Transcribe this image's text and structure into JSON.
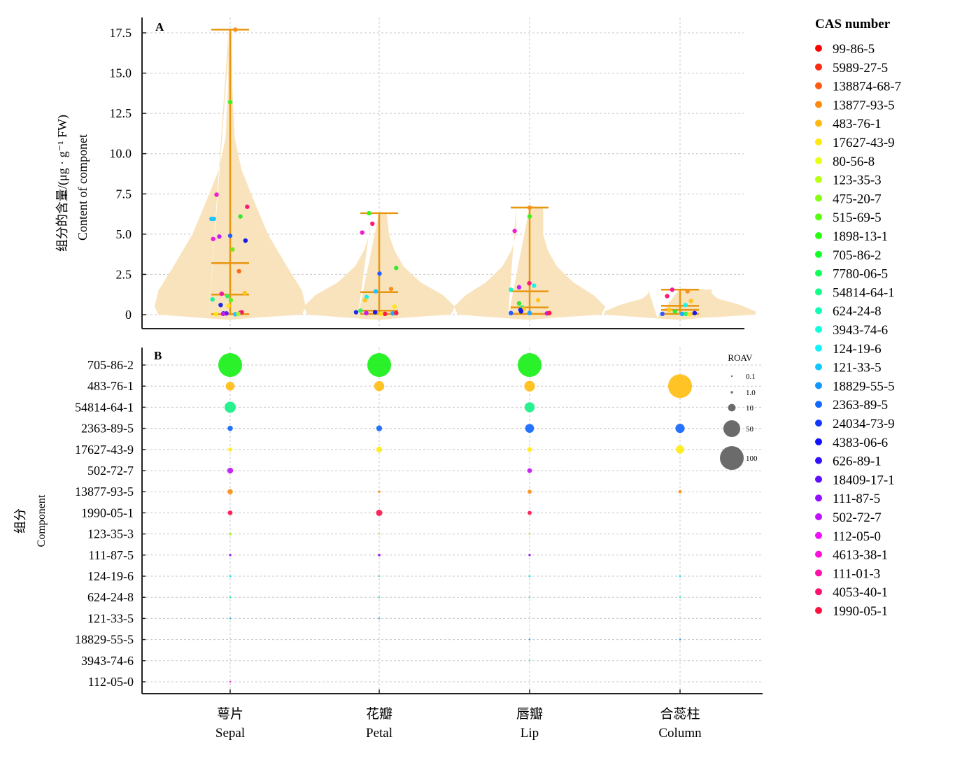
{
  "chart_data": [
    {
      "panel": "A",
      "type": "violin",
      "title": "",
      "panel_label": "A",
      "ylabel_cn": "组分的含量/(μg · g⁻¹ FW)",
      "ylabel_en": "Content of componet",
      "ylim": [
        0,
        17.5
      ],
      "yticks": [
        0,
        2.5,
        5.0,
        7.5,
        10.0,
        12.5,
        15.0,
        17.5
      ],
      "ytick_labels": [
        "0",
        "2.5",
        "5.0",
        "7.5",
        "10.0",
        "12.5",
        "15.0",
        "17.5"
      ],
      "grid": true,
      "violin_color": "#f9e3bc",
      "whisker_color": "#e8960f",
      "categories": [
        "Sepal",
        "Petal",
        "Lip",
        "Column"
      ],
      "groups": [
        {
          "name": "Sepal",
          "max": 17.7,
          "q3": 3.2,
          "median": 1.25,
          "min": 0.03,
          "violin_width_profile": [
            [
              0,
              0.95
            ],
            [
              0.5,
              1.0
            ],
            [
              1.5,
              0.95
            ],
            [
              3,
              0.75
            ],
            [
              5,
              0.5
            ],
            [
              7,
              0.32
            ],
            [
              9,
              0.15
            ],
            [
              11,
              0.06
            ],
            [
              14,
              0.03
            ],
            [
              17.7,
              0.02
            ]
          ],
          "points": [
            {
              "v": 17.7,
              "c": "#f7931e",
              "j": 0.15
            },
            {
              "v": 13.2,
              "c": "#3ef01e",
              "j": 0.0
            },
            {
              "v": 7.45,
              "c": "#f21cd2",
              "j": -0.4
            },
            {
              "v": 6.7,
              "c": "#ff1a75",
              "j": 0.5
            },
            {
              "v": 6.1,
              "c": "#33e833",
              "j": 0.3
            },
            {
              "v": 5.95,
              "c": "#1fc3ff",
              "j": -0.55
            },
            {
              "v": 5.95,
              "c": "#1fc3ff",
              "j": -0.48
            },
            {
              "v": 4.9,
              "c": "#2a5bff",
              "j": 0.0
            },
            {
              "v": 4.85,
              "c": "#c21ef2",
              "j": -0.32
            },
            {
              "v": 4.7,
              "c": "#f01edc",
              "j": -0.5
            },
            {
              "v": 4.6,
              "c": "#1a1ae8",
              "j": 0.45
            },
            {
              "v": 4.05,
              "c": "#7ae51a",
              "j": 0.07
            },
            {
              "v": 2.7,
              "c": "#ff6a1a",
              "j": 0.26
            },
            {
              "v": 1.35,
              "c": "#ffc61a",
              "j": 0.43
            },
            {
              "v": 1.3,
              "c": "#f01e9c",
              "j": -0.25
            },
            {
              "v": 1.15,
              "c": "#33f066",
              "j": -0.08
            },
            {
              "v": 0.95,
              "c": "#1ef0a0",
              "j": -0.52
            },
            {
              "v": 0.9,
              "c": "#5af01e",
              "j": 0.02
            },
            {
              "v": 0.6,
              "c": "#1a2ae8",
              "j": -0.28
            },
            {
              "v": 0.55,
              "c": "#ffe01a",
              "j": -0.05
            },
            {
              "v": 0.15,
              "c": "#ff1a40",
              "j": 0.34
            },
            {
              "v": 0.12,
              "c": "#e81e8c",
              "j": 0.3
            },
            {
              "v": 0.08,
              "c": "#1a2ae8",
              "j": -0.2
            },
            {
              "v": 0.08,
              "c": "#6a1ae8",
              "j": -0.11
            },
            {
              "v": 0.03,
              "c": "#ffe01a",
              "j": -0.42
            },
            {
              "v": 0.03,
              "c": "#1fc3ff",
              "j": 0.15
            },
            {
              "v": 0.05,
              "c": "#b0f01e",
              "j": 0.24
            },
            {
              "v": 0.05,
              "c": "#c21ef2",
              "j": -0.21
            }
          ]
        },
        {
          "name": "Petal",
          "max": 6.3,
          "q3": 1.4,
          "median": 0.25,
          "min": 0.05,
          "violin_width_profile": [
            [
              0,
              0.95
            ],
            [
              0.5,
              1.0
            ],
            [
              1.2,
              0.85
            ],
            [
              2,
              0.55
            ],
            [
              3,
              0.32
            ],
            [
              4,
              0.2
            ],
            [
              5,
              0.13
            ],
            [
              6.3,
              0.1
            ]
          ],
          "points": [
            {
              "v": 6.3,
              "c": "#3ef01e",
              "j": -0.3
            },
            {
              "v": 5.65,
              "c": "#ff1a75",
              "j": -0.2
            },
            {
              "v": 5.1,
              "c": "#f21cd2",
              "j": -0.5
            },
            {
              "v": 2.9,
              "c": "#33e833",
              "j": 0.5
            },
            {
              "v": 2.55,
              "c": "#2a5bff",
              "j": 0.01
            },
            {
              "v": 1.6,
              "c": "#f7931e",
              "j": 0.35
            },
            {
              "v": 1.45,
              "c": "#1fc3ff",
              "j": -0.1
            },
            {
              "v": 1.1,
              "c": "#1ff0e8",
              "j": -0.37
            },
            {
              "v": 0.9,
              "c": "#ffc61a",
              "j": -0.42
            },
            {
              "v": 0.5,
              "c": "#ffe01a",
              "j": 0.45
            },
            {
              "v": 0.25,
              "c": "#33f066",
              "j": -0.55
            },
            {
              "v": 0.15,
              "c": "#1a2ae8",
              "j": -0.68
            },
            {
              "v": 0.15,
              "c": "#1a1ae8",
              "j": -0.12
            },
            {
              "v": 0.1,
              "c": "#c21ef2",
              "j": -0.38
            },
            {
              "v": 0.05,
              "c": "#ff1a40",
              "j": 0.17
            },
            {
              "v": 0.05,
              "c": "#ffe01a",
              "j": 0.05
            },
            {
              "v": 0.08,
              "c": "#1fa8ff",
              "j": 0.4
            },
            {
              "v": 0.1,
              "c": "#ff1a40",
              "j": 0.5
            }
          ]
        },
        {
          "name": "Lip",
          "max": 6.65,
          "q3": 1.45,
          "median": 0.45,
          "min": 0.05,
          "violin_width_profile": [
            [
              0,
              0.95
            ],
            [
              0.5,
              1.0
            ],
            [
              1.2,
              0.85
            ],
            [
              2,
              0.58
            ],
            [
              3,
              0.36
            ],
            [
              4,
              0.24
            ],
            [
              5,
              0.18
            ],
            [
              6.65,
              0.18
            ]
          ],
          "points": [
            {
              "v": 6.65,
              "c": "#f7931e",
              "j": 0.0
            },
            {
              "v": 6.1,
              "c": "#3ef01e",
              "j": 0.0
            },
            {
              "v": 5.2,
              "c": "#f21cd2",
              "j": -0.44
            },
            {
              "v": 1.95,
              "c": "#ff1a75",
              "j": -0.01
            },
            {
              "v": 1.8,
              "c": "#1ff0e8",
              "j": 0.13
            },
            {
              "v": 1.7,
              "c": "#c21ef2",
              "j": -0.31
            },
            {
              "v": 1.55,
              "c": "#1ff0c8",
              "j": -0.55
            },
            {
              "v": 0.9,
              "c": "#ffc61a",
              "j": 0.25
            },
            {
              "v": 0.7,
              "c": "#33e833",
              "j": -0.31
            },
            {
              "v": 0.45,
              "c": "#33f066",
              "j": -0.22
            },
            {
              "v": 0.35,
              "c": "#ffc61a",
              "j": -0.18
            },
            {
              "v": 0.3,
              "c": "#1a2ae8",
              "j": -0.27
            },
            {
              "v": 0.2,
              "c": "#1a1ae8",
              "j": -0.25
            },
            {
              "v": 0.1,
              "c": "#2a5bff",
              "j": -0.55
            },
            {
              "v": 0.1,
              "c": "#1fa8ff",
              "j": 0.0
            },
            {
              "v": 0.08,
              "c": "#c21ef2",
              "j": 0.51
            },
            {
              "v": 0.1,
              "c": "#ff1a40",
              "j": 0.58
            }
          ]
        },
        {
          "name": "Column",
          "max": 1.55,
          "q3": 0.55,
          "median": 0.3,
          "min": 0.05,
          "violin_width_profile": [
            [
              0,
              1.0
            ],
            [
              0.2,
              1.0
            ],
            [
              0.6,
              0.8
            ],
            [
              1.0,
              0.5
            ],
            [
              1.3,
              0.42
            ],
            [
              1.55,
              0.42
            ]
          ],
          "points": [
            {
              "v": 1.55,
              "c": "#f21c9c",
              "j": -0.23
            },
            {
              "v": 1.45,
              "c": "#f7931e",
              "j": 0.22
            },
            {
              "v": 1.15,
              "c": "#ff1a75",
              "j": -0.38
            },
            {
              "v": 0.85,
              "c": "#ffc61a",
              "j": 0.32
            },
            {
              "v": 0.6,
              "c": "#1ff0e8",
              "j": 0.16
            },
            {
              "v": 0.3,
              "c": "#ffc61a",
              "j": -0.32
            },
            {
              "v": 0.2,
              "c": "#33e833",
              "j": -0.15
            },
            {
              "v": 0.1,
              "c": "#1a1ae8",
              "j": 0.43
            },
            {
              "v": 0.05,
              "c": "#2a5bff",
              "j": -0.52
            },
            {
              "v": 0.05,
              "c": "#1fa8ff",
              "j": 0.06
            },
            {
              "v": 0.05,
              "c": "#33f066",
              "j": 0.17
            },
            {
              "v": 0.03,
              "c": "#ffe01a",
              "j": 0.28
            }
          ]
        }
      ]
    },
    {
      "panel": "B",
      "type": "bubble",
      "panel_label": "B",
      "ylabel_cn": "组分",
      "ylabel_en": "Component",
      "grid": true,
      "size_legend_title": "ROAV",
      "size_legend": [
        {
          "label": "0.1",
          "value": 0.1
        },
        {
          "label": "1.0",
          "value": 1.0
        },
        {
          "label": "10",
          "value": 10
        },
        {
          "label": "50",
          "value": 50
        },
        {
          "label": "100",
          "value": 100
        }
      ],
      "size_legend_color": "#6b6b6b",
      "components": [
        "705-86-2",
        "483-76-1",
        "54814-64-1",
        "2363-89-5",
        "17627-43-9",
        "502-72-7",
        "13877-93-5",
        "1990-05-1",
        "123-35-3",
        "111-87-5",
        "124-19-6",
        "624-24-8",
        "121-33-5",
        "18829-55-5",
        "3943-74-6",
        "112-05-0"
      ],
      "component_colors": [
        "#1ff01e",
        "#ffc01a",
        "#1ff08a",
        "#1a6cff",
        "#ffec1a",
        "#c21ef2",
        "#f7931e",
        "#ff1a52",
        "#b0f01e",
        "#9a1ef2",
        "#1fe6f0",
        "#1ff0b0",
        "#1fb0f0",
        "#1f90ff",
        "#1ff0d8",
        "#f01ee8"
      ],
      "categories": [
        "Sepal",
        "Petal",
        "Lip",
        "Column"
      ],
      "roav": {
        "Sepal": [
          100,
          14,
          22,
          5,
          3,
          6,
          5,
          4,
          1.2,
          1.0,
          0.8,
          0.6,
          0.5,
          0,
          0,
          0.2
        ],
        "Petal": [
          100,
          18,
          0,
          6,
          6,
          0,
          1.0,
          7,
          0.4,
          1.2,
          0.4,
          0.3,
          0.3,
          0,
          0,
          0
        ],
        "Lip": [
          100,
          20,
          18,
          14,
          4,
          4,
          3,
          3,
          0.6,
          1.0,
          0.8,
          0.4,
          0,
          0.3,
          0.1,
          0
        ],
        "Column": [
          0,
          100,
          0,
          15,
          12,
          0,
          2,
          0,
          0,
          0,
          0.7,
          0.2,
          0,
          0.5,
          0,
          0
        ]
      }
    }
  ],
  "x_axis": {
    "labels_cn": [
      "萼片",
      "花瓣",
      "唇瓣",
      "合蕊柱"
    ],
    "labels_en": [
      "Sepal",
      "Petal",
      "Lip",
      "Column"
    ]
  },
  "legend": {
    "title": "CAS number",
    "items": [
      {
        "label": "99-86-5",
        "color": "#ff0000"
      },
      {
        "label": "5989-27-5",
        "color": "#ff2a10"
      },
      {
        "label": "138874-68-7",
        "color": "#ff5a10"
      },
      {
        "label": "13877-93-5",
        "color": "#ff8a10"
      },
      {
        "label": "483-76-1",
        "color": "#ffb810"
      },
      {
        "label": "17627-43-9",
        "color": "#ffe810"
      },
      {
        "label": "80-56-8",
        "color": "#e8ff10"
      },
      {
        "label": "123-35-3",
        "color": "#b8ff10"
      },
      {
        "label": "475-20-7",
        "color": "#88ff10"
      },
      {
        "label": "515-69-5",
        "color": "#58ff10"
      },
      {
        "label": "1898-13-1",
        "color": "#28ff10"
      },
      {
        "label": "705-86-2",
        "color": "#10ff28"
      },
      {
        "label": "7780-06-5",
        "color": "#10ff58"
      },
      {
        "label": "54814-64-1",
        "color": "#10ff88"
      },
      {
        "label": "624-24-8",
        "color": "#10ffb8"
      },
      {
        "label": "3943-74-6",
        "color": "#10ffdc"
      },
      {
        "label": "124-19-6",
        "color": "#10f4ff"
      },
      {
        "label": "121-33-5",
        "color": "#10c8ff"
      },
      {
        "label": "18829-55-5",
        "color": "#1098ff"
      },
      {
        "label": "2363-89-5",
        "color": "#1068ff"
      },
      {
        "label": "24034-73-9",
        "color": "#1038ff"
      },
      {
        "label": "4383-06-6",
        "color": "#1010ff"
      },
      {
        "label": "626-89-1",
        "color": "#3010ff"
      },
      {
        "label": "18409-17-1",
        "color": "#6010ff"
      },
      {
        "label": "111-87-5",
        "color": "#9010ff"
      },
      {
        "label": "502-72-7",
        "color": "#c010ff"
      },
      {
        "label": "112-05-0",
        "color": "#f010ff"
      },
      {
        "label": "4613-38-1",
        "color": "#ff10d8"
      },
      {
        "label": "111-01-3",
        "color": "#ff10a8"
      },
      {
        "label": "4053-40-1",
        "color": "#ff1070"
      },
      {
        "label": "1990-05-1",
        "color": "#ff1040"
      }
    ]
  }
}
